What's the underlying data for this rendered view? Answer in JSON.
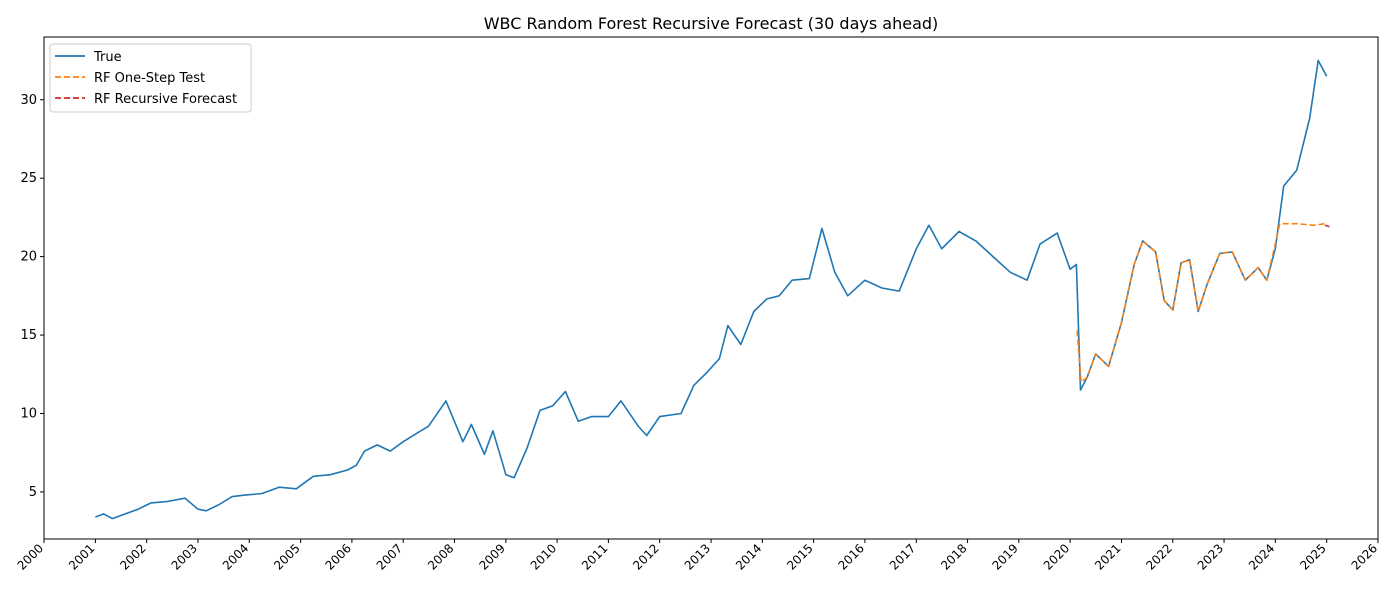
{
  "chart_data": {
    "type": "line",
    "title": "WBC Random Forest Recursive Forecast (30 days ahead)",
    "xlabel": "",
    "ylabel": "",
    "xlim": [
      "2000-01-01",
      "2026-01-01"
    ],
    "ylim": [
      2,
      34
    ],
    "x_ticks": [
      "2000",
      "2001",
      "2002",
      "2003",
      "2004",
      "2005",
      "2006",
      "2007",
      "2008",
      "2009",
      "2010",
      "2011",
      "2012",
      "2013",
      "2014",
      "2015",
      "2016",
      "2017",
      "2018",
      "2019",
      "2020",
      "2021",
      "2022",
      "2023",
      "2024",
      "2025",
      "2026"
    ],
    "y_ticks": [
      5,
      10,
      15,
      20,
      25,
      30
    ],
    "grid": false,
    "legend_position": "top-left",
    "series": [
      {
        "name": "True",
        "color": "#1f77b4",
        "style": "solid",
        "points": [
          [
            "2001-01-01",
            3.4
          ],
          [
            "2001-03-01",
            3.6
          ],
          [
            "2001-05-01",
            3.3
          ],
          [
            "2001-08-01",
            3.6
          ],
          [
            "2001-11-01",
            3.9
          ],
          [
            "2002-02-01",
            4.3
          ],
          [
            "2002-06-01",
            4.4
          ],
          [
            "2002-10-01",
            4.6
          ],
          [
            "2003-01-01",
            3.9
          ],
          [
            "2003-03-01",
            3.8
          ],
          [
            "2003-06-01",
            4.2
          ],
          [
            "2003-09-01",
            4.7
          ],
          [
            "2003-12-01",
            4.8
          ],
          [
            "2004-04-01",
            4.9
          ],
          [
            "2004-08-01",
            5.3
          ],
          [
            "2004-12-01",
            5.2
          ],
          [
            "2005-04-01",
            6.0
          ],
          [
            "2005-08-01",
            6.1
          ],
          [
            "2005-12-01",
            6.4
          ],
          [
            "2006-02-01",
            6.7
          ],
          [
            "2006-04-01",
            7.6
          ],
          [
            "2006-07-01",
            8.0
          ],
          [
            "2006-10-01",
            7.6
          ],
          [
            "2007-01-01",
            8.2
          ],
          [
            "2007-04-01",
            8.7
          ],
          [
            "2007-07-01",
            9.2
          ],
          [
            "2007-11-01",
            10.8
          ],
          [
            "2008-01-01",
            9.5
          ],
          [
            "2008-03-01",
            8.2
          ],
          [
            "2008-05-01",
            9.3
          ],
          [
            "2008-08-01",
            7.4
          ],
          [
            "2008-10-01",
            8.9
          ],
          [
            "2009-01-01",
            6.1
          ],
          [
            "2009-03-01",
            5.9
          ],
          [
            "2009-06-01",
            7.8
          ],
          [
            "2009-09-01",
            10.2
          ],
          [
            "2009-12-01",
            10.5
          ],
          [
            "2010-03-01",
            11.4
          ],
          [
            "2010-06-01",
            9.5
          ],
          [
            "2010-09-01",
            9.8
          ],
          [
            "2011-01-01",
            9.8
          ],
          [
            "2011-04-01",
            10.8
          ],
          [
            "2011-08-01",
            9.2
          ],
          [
            "2011-10-01",
            8.6
          ],
          [
            "2012-01-01",
            9.8
          ],
          [
            "2012-06-01",
            10.0
          ],
          [
            "2012-09-01",
            11.8
          ],
          [
            "2012-12-01",
            12.6
          ],
          [
            "2013-03-01",
            13.5
          ],
          [
            "2013-05-01",
            15.6
          ],
          [
            "2013-08-01",
            14.4
          ],
          [
            "2013-11-01",
            16.5
          ],
          [
            "2014-02-01",
            17.3
          ],
          [
            "2014-05-01",
            17.5
          ],
          [
            "2014-08-01",
            18.5
          ],
          [
            "2014-12-01",
            18.6
          ],
          [
            "2015-03-01",
            21.8
          ],
          [
            "2015-06-01",
            19.0
          ],
          [
            "2015-09-01",
            17.5
          ],
          [
            "2016-01-01",
            18.5
          ],
          [
            "2016-05-01",
            18.0
          ],
          [
            "2016-09-01",
            17.8
          ],
          [
            "2017-01-01",
            20.5
          ],
          [
            "2017-04-01",
            22.0
          ],
          [
            "2017-07-01",
            20.5
          ],
          [
            "2017-11-01",
            21.6
          ],
          [
            "2018-03-01",
            21.0
          ],
          [
            "2018-07-01",
            20.0
          ],
          [
            "2018-11-01",
            19.0
          ],
          [
            "2019-03-01",
            18.5
          ],
          [
            "2019-06-01",
            20.8
          ],
          [
            "2019-10-01",
            21.5
          ],
          [
            "2020-01-01",
            19.2
          ],
          [
            "2020-02-15",
            19.5
          ],
          [
            "2020-03-15",
            11.5
          ],
          [
            "2020-05-01",
            12.3
          ],
          [
            "2020-07-01",
            13.8
          ],
          [
            "2020-10-01",
            13.0
          ],
          [
            "2021-01-01",
            15.8
          ],
          [
            "2021-04-01",
            19.5
          ],
          [
            "2021-06-01",
            21.0
          ],
          [
            "2021-09-01",
            20.3
          ],
          [
            "2021-11-01",
            17.2
          ],
          [
            "2022-01-01",
            16.6
          ],
          [
            "2022-03-01",
            19.6
          ],
          [
            "2022-05-01",
            19.8
          ],
          [
            "2022-07-01",
            16.5
          ],
          [
            "2022-09-01",
            18.2
          ],
          [
            "2022-12-01",
            20.2
          ],
          [
            "2023-03-01",
            20.3
          ],
          [
            "2023-06-01",
            18.5
          ],
          [
            "2023-09-01",
            19.3
          ],
          [
            "2023-11-01",
            18.5
          ],
          [
            "2024-01-01",
            20.5
          ],
          [
            "2024-03-01",
            24.5
          ],
          [
            "2024-06-01",
            25.5
          ],
          [
            "2024-09-01",
            28.8
          ],
          [
            "2024-11-01",
            32.5
          ],
          [
            "2025-01-01",
            31.5
          ]
        ]
      },
      {
        "name": "RF One-Step Test",
        "color": "#ff7f0e",
        "style": "dashed",
        "points": [
          [
            "2020-02-20",
            15.3
          ],
          [
            "2020-03-20",
            12.0
          ],
          [
            "2020-05-01",
            12.3
          ],
          [
            "2020-07-01",
            13.8
          ],
          [
            "2020-10-01",
            13.0
          ],
          [
            "2021-01-01",
            15.8
          ],
          [
            "2021-04-01",
            19.5
          ],
          [
            "2021-06-01",
            21.0
          ],
          [
            "2021-09-01",
            20.3
          ],
          [
            "2021-11-01",
            17.2
          ],
          [
            "2022-01-01",
            16.6
          ],
          [
            "2022-03-01",
            19.6
          ],
          [
            "2022-05-01",
            19.8
          ],
          [
            "2022-07-01",
            16.5
          ],
          [
            "2022-09-01",
            18.2
          ],
          [
            "2022-12-01",
            20.2
          ],
          [
            "2023-03-01",
            20.3
          ],
          [
            "2023-06-01",
            18.5
          ],
          [
            "2023-09-01",
            19.3
          ],
          [
            "2023-11-01",
            18.5
          ],
          [
            "2024-01-01",
            20.8
          ],
          [
            "2024-02-01",
            22.1
          ],
          [
            "2024-06-01",
            22.1
          ],
          [
            "2024-10-01",
            22.0
          ],
          [
            "2024-12-20",
            22.1
          ]
        ]
      },
      {
        "name": "RF Recursive Forecast",
        "color": "#d62728",
        "style": "dashed",
        "points": [
          [
            "2024-12-20",
            22.0
          ],
          [
            "2025-01-20",
            21.9
          ]
        ]
      }
    ]
  }
}
